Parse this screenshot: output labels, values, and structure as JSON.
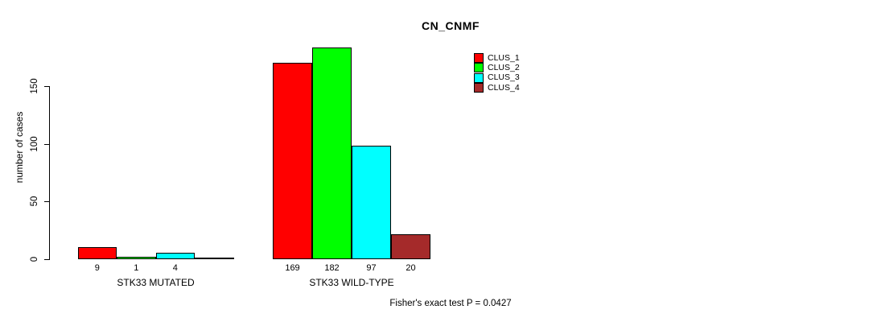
{
  "chart_data": {
    "type": "bar",
    "title": "CN_CNMF",
    "ylabel": "number of cases",
    "ylim": [
      0,
      150
    ],
    "yticks": [
      0,
      50,
      100,
      150
    ],
    "grid": false,
    "legend_position": "top-right",
    "categories": [
      "STK33 MUTATED",
      "STK33 WILD-TYPE"
    ],
    "series": [
      {
        "name": "CLUS_1",
        "color": "#ff0000",
        "values": [
          9,
          169
        ]
      },
      {
        "name": "CLUS_2",
        "color": "#00ff00",
        "values": [
          1,
          182
        ]
      },
      {
        "name": "CLUS_3",
        "color": "#00ffff",
        "values": [
          4,
          97
        ]
      },
      {
        "name": "CLUS_4",
        "color": "#a52a2a",
        "values": [
          0,
          20
        ]
      }
    ],
    "bar_value_labels": [
      [
        "9",
        "1",
        "4",
        ""
      ],
      [
        "169",
        "182",
        "97",
        "20"
      ]
    ],
    "annotation": "Fisher's exact test P = 0.0427",
    "axis_color": "#000000",
    "background_color": "#ffffff"
  }
}
